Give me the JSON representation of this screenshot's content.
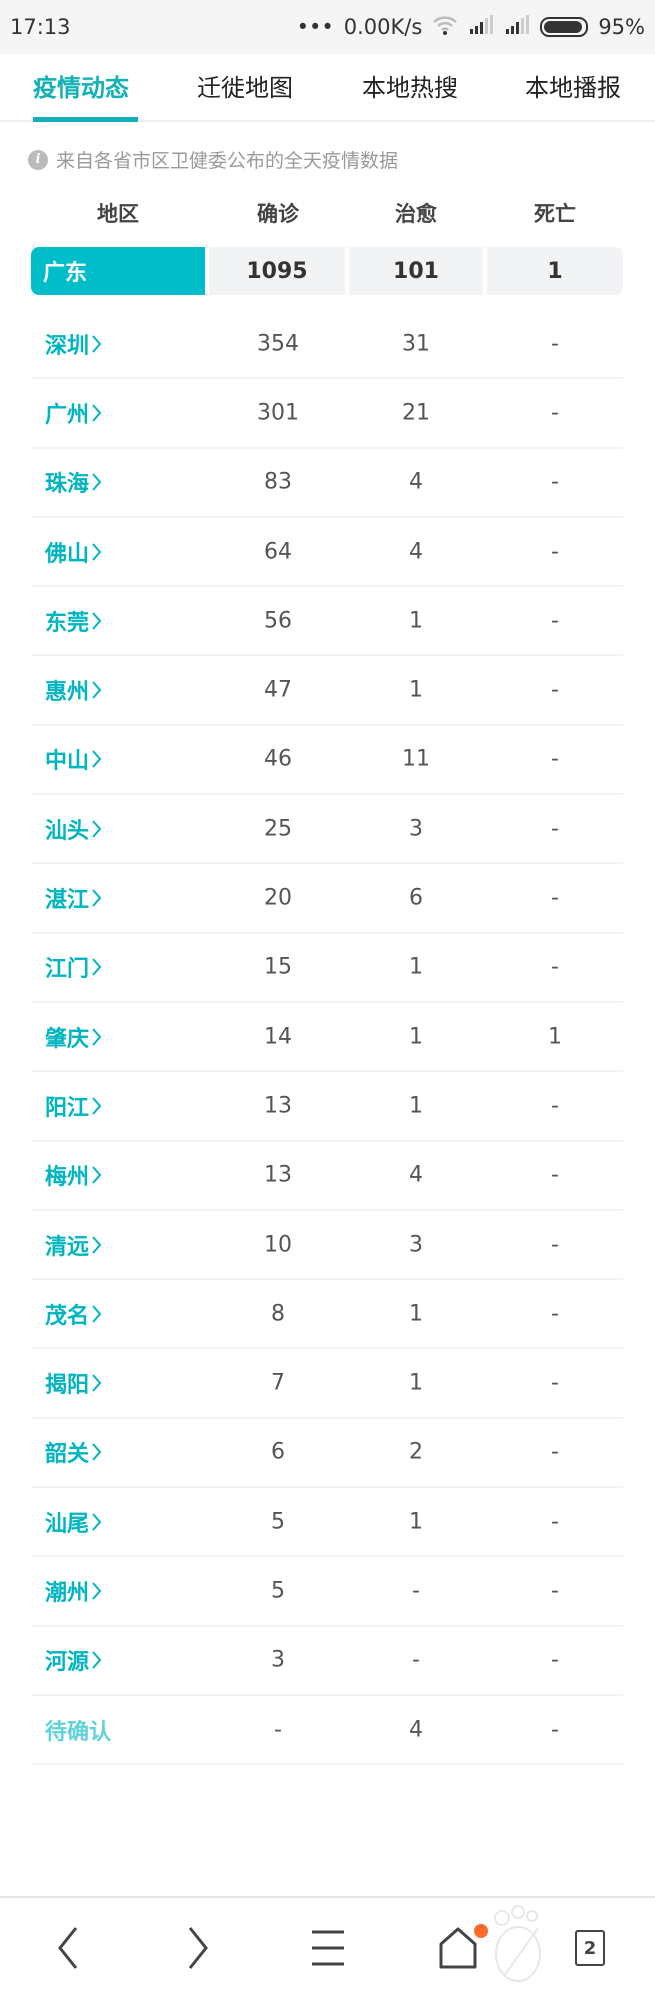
{
  "status_bar": {
    "time": "17:13",
    "dots": "•••",
    "speed": "0.00K/s",
    "battery": "95%",
    "battery_level": 0.95
  },
  "tabs": [
    {
      "label": "疫情动态",
      "active": true
    },
    {
      "label": "迁徙地图",
      "active": false
    },
    {
      "label": "本地热搜",
      "active": false
    },
    {
      "label": "本地播报",
      "active": false
    }
  ],
  "info_note": "来自各省市区卫健委公布的全天疫情数据",
  "table": {
    "headers": [
      "地区",
      "确诊",
      "治愈",
      "死亡"
    ],
    "province": {
      "name": "广东",
      "confirmed": "1095",
      "cured": "101",
      "deaths": "1"
    },
    "rows": [
      {
        "name": "深圳",
        "confirmed": "354",
        "cured": "31",
        "deaths": "-"
      },
      {
        "name": "广州",
        "confirmed": "301",
        "cured": "21",
        "deaths": "-"
      },
      {
        "name": "珠海",
        "confirmed": "83",
        "cured": "4",
        "deaths": "-"
      },
      {
        "name": "佛山",
        "confirmed": "64",
        "cured": "4",
        "deaths": "-"
      },
      {
        "name": "东莞",
        "confirmed": "56",
        "cured": "1",
        "deaths": "-"
      },
      {
        "name": "惠州",
        "confirmed": "47",
        "cured": "1",
        "deaths": "-"
      },
      {
        "name": "中山",
        "confirmed": "46",
        "cured": "11",
        "deaths": "-"
      },
      {
        "name": "汕头",
        "confirmed": "25",
        "cured": "3",
        "deaths": "-"
      },
      {
        "name": "湛江",
        "confirmed": "20",
        "cured": "6",
        "deaths": "-"
      },
      {
        "name": "江门",
        "confirmed": "15",
        "cured": "1",
        "deaths": "-"
      },
      {
        "name": "肇庆",
        "confirmed": "14",
        "cured": "1",
        "deaths": "1"
      },
      {
        "name": "阳江",
        "confirmed": "13",
        "cured": "1",
        "deaths": "-"
      },
      {
        "name": "梅州",
        "confirmed": "13",
        "cured": "4",
        "deaths": "-"
      },
      {
        "name": "清远",
        "confirmed": "10",
        "cured": "3",
        "deaths": "-"
      },
      {
        "name": "茂名",
        "confirmed": "8",
        "cured": "1",
        "deaths": "-"
      },
      {
        "name": "揭阳",
        "confirmed": "7",
        "cured": "1",
        "deaths": "-"
      },
      {
        "name": "韶关",
        "confirmed": "6",
        "cured": "2",
        "deaths": "-"
      },
      {
        "name": "汕尾",
        "confirmed": "5",
        "cured": "1",
        "deaths": "-"
      },
      {
        "name": "潮州",
        "confirmed": "5",
        "cured": "-",
        "deaths": "-"
      },
      {
        "name": "河源",
        "confirmed": "3",
        "cured": "-",
        "deaths": "-"
      },
      {
        "name": "待确认",
        "confirmed": "-",
        "cured": "4",
        "deaths": "-",
        "pending": true
      }
    ]
  },
  "bottom_nav": {
    "tab_count": "2"
  },
  "colors": {
    "accent": "#12b1b8",
    "province_bg": "#00bec9",
    "notification_dot": "#ff6a2a"
  }
}
